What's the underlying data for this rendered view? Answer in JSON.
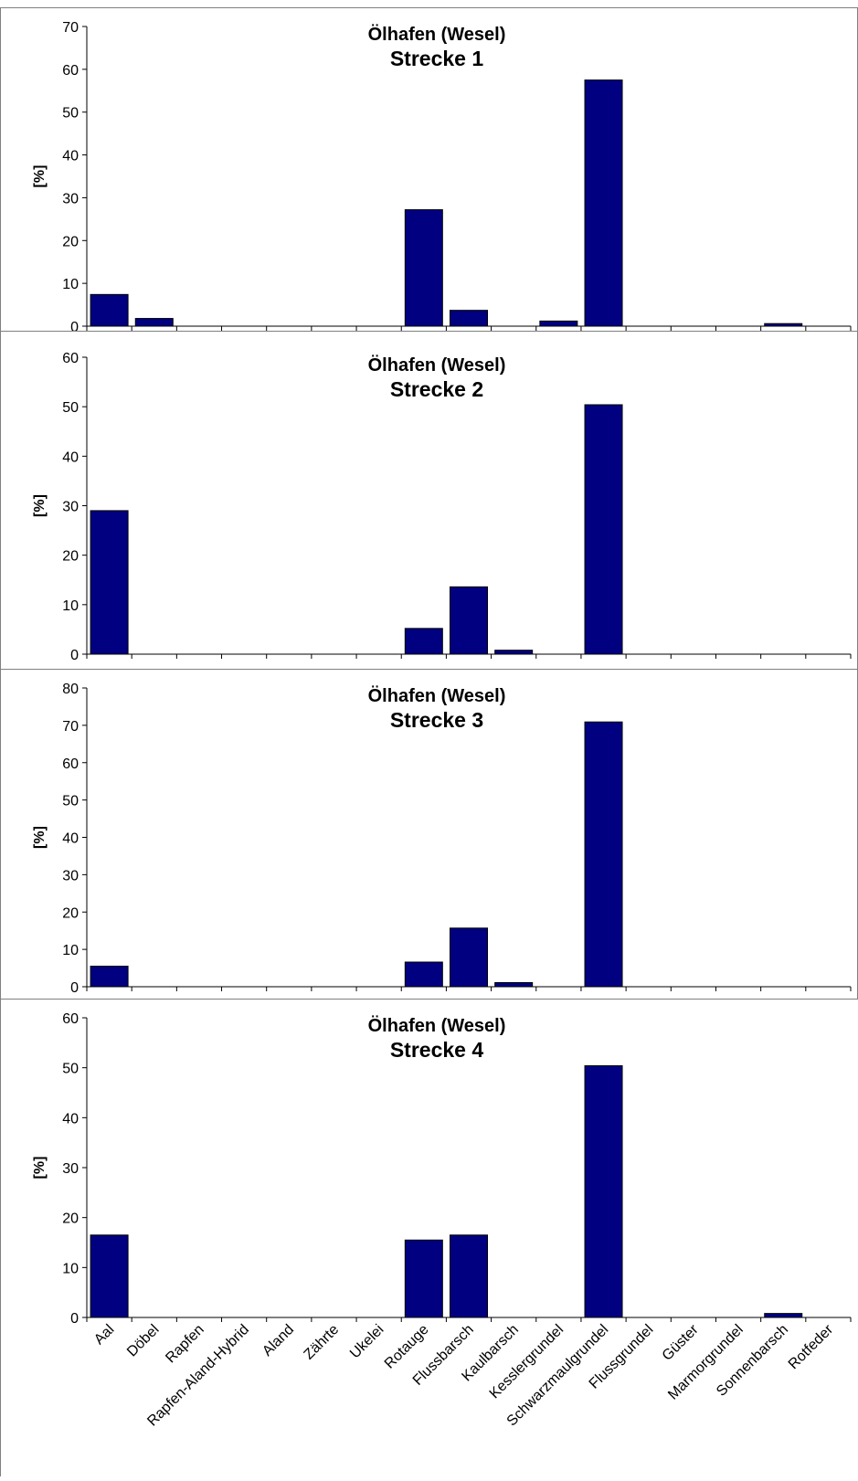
{
  "chart_data": {
    "type": "bar",
    "ylabel": "[%]",
    "categories": [
      "Aal",
      "Döbel",
      "Rapfen",
      "Rapfen-Aland-Hybrid",
      "Aland",
      "Zährte",
      "Ukelei",
      "Rotauge",
      "Flussbarsch",
      "Kaulbarsch",
      "Kesslergrundel",
      "Schwarzmaulgrundel",
      "Flussgrundel",
      "Güster",
      "Marmorgrundel",
      "Sonnenbarsch",
      "Rotfeder"
    ],
    "bar_color": "#000080",
    "panels": [
      {
        "title": "Ölhafen (Wesel)",
        "subtitle": "Strecke 1",
        "ylim": [
          0,
          70
        ],
        "yticks": [
          0,
          10,
          20,
          30,
          40,
          50,
          60,
          70
        ],
        "values": [
          7.4,
          1.8,
          0,
          0,
          0,
          0,
          0,
          27.2,
          3.7,
          0,
          1.2,
          57.5,
          0,
          0,
          0,
          0.6,
          0
        ]
      },
      {
        "title": "Ölhafen (Wesel)",
        "subtitle": "Strecke 2",
        "ylim": [
          0,
          60
        ],
        "yticks": [
          0,
          10,
          20,
          30,
          40,
          50,
          60
        ],
        "values": [
          29.0,
          0,
          0,
          0,
          0,
          0,
          0,
          5.2,
          13.6,
          0.8,
          0,
          50.4,
          0,
          0,
          0,
          0,
          0
        ]
      },
      {
        "title": "Ölhafen (Wesel)",
        "subtitle": "Strecke 3",
        "ylim": [
          0,
          80
        ],
        "yticks": [
          0,
          10,
          20,
          30,
          40,
          50,
          60,
          70,
          80
        ],
        "values": [
          5.5,
          0,
          0,
          0,
          0,
          0,
          0,
          6.6,
          15.7,
          1.1,
          0,
          70.9,
          0,
          0,
          0,
          0,
          0
        ]
      },
      {
        "title": "Ölhafen (Wesel)",
        "subtitle": "Strecke 4",
        "ylim": [
          0,
          60
        ],
        "yticks": [
          0,
          10,
          20,
          30,
          40,
          50,
          60
        ],
        "values": [
          16.5,
          0,
          0,
          0,
          0,
          0,
          0,
          15.5,
          16.5,
          0,
          0,
          50.4,
          0,
          0,
          0,
          0.8,
          0
        ]
      }
    ]
  }
}
